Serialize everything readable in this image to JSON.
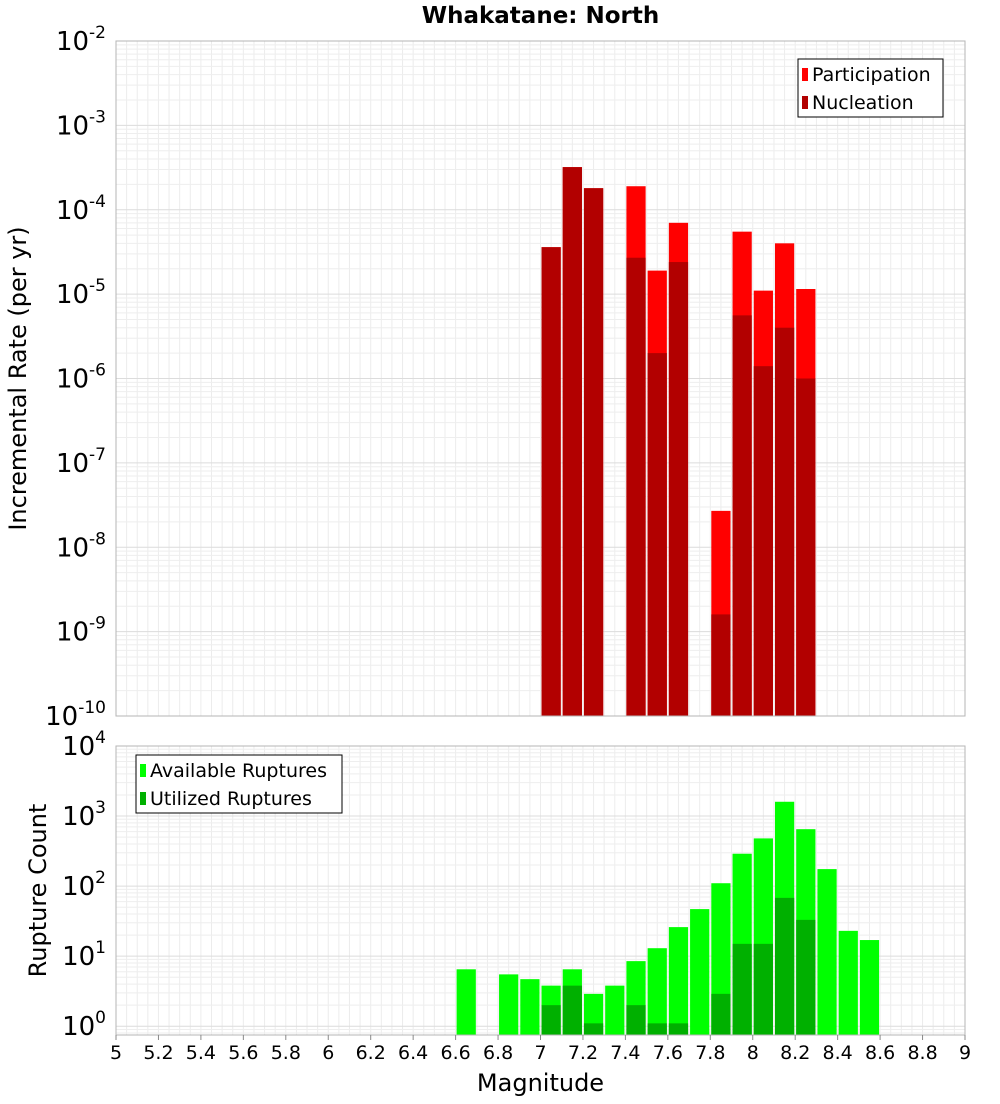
{
  "chart_data": [
    {
      "type": "bar",
      "title": "Whakatane: North",
      "ylabel": "Incremental Rate (per yr)",
      "xlabel": "",
      "y_scale": "log",
      "ylim": [
        1e-10,
        0.01
      ],
      "xlim": [
        5,
        9
      ],
      "bar_width": 0.1,
      "grid": true,
      "legend_position": "top-right",
      "y_tick_exponents": [
        "-10",
        "-9",
        "-8",
        "-7",
        "-6",
        "-5",
        "-4",
        "-3",
        "-2"
      ],
      "y_tick_base": "10",
      "series": [
        {
          "name": "Participation",
          "color": "#ff0000",
          "x": [
            7.05,
            7.15,
            7.25,
            7.45,
            7.55,
            7.65,
            7.85,
            7.95,
            8.05,
            8.15,
            8.25
          ],
          "values": [
            3.6e-05,
            0.00032,
            0.00018,
            0.00019,
            1.9e-05,
            7e-05,
            2.7e-08,
            5.5e-05,
            1.1e-05,
            4e-05,
            1.15e-05
          ]
        },
        {
          "name": "Nucleation",
          "color": "#b20000",
          "x": [
            7.05,
            7.15,
            7.25,
            7.45,
            7.55,
            7.65,
            7.85,
            7.95,
            8.05,
            8.15,
            8.25
          ],
          "values": [
            3.6e-05,
            0.00032,
            0.00018,
            2.7e-05,
            2e-06,
            2.4e-05,
            1.6e-09,
            5.6e-06,
            1.4e-06,
            4e-06,
            1e-06
          ]
        }
      ]
    },
    {
      "type": "bar",
      "title": "",
      "ylabel": "Rupture Count",
      "xlabel": "Magnitude",
      "y_scale": "log",
      "ylim": [
        0.75,
        10000
      ],
      "xlim": [
        5,
        9
      ],
      "bar_width": 0.1,
      "grid": true,
      "legend_position": "top-left",
      "y_tick_exponents": [
        "0",
        "1",
        "2",
        "3",
        "4"
      ],
      "y_tick_base": "10",
      "x_ticks": [
        "5",
        "5.2",
        "5.4",
        "5.6",
        "5.8",
        "6",
        "6.2",
        "6.4",
        "6.6",
        "6.8",
        "7",
        "7.2",
        "7.4",
        "7.6",
        "7.8",
        "8",
        "8.2",
        "8.4",
        "8.6",
        "8.8",
        "9"
      ],
      "series": [
        {
          "name": "Available Ruptures",
          "color": "#00ff00",
          "x": [
            6.65,
            6.85,
            6.95,
            7.05,
            7.15,
            7.25,
            7.35,
            7.45,
            7.55,
            7.65,
            7.75,
            7.85,
            7.95,
            8.05,
            8.15,
            8.25,
            8.35,
            8.45,
            8.55
          ],
          "values": [
            6.5,
            5.5,
            4.7,
            3.8,
            6.5,
            2.9,
            3.8,
            8.5,
            13,
            26,
            47,
            110,
            290,
            480,
            1600,
            650,
            175,
            23,
            17
          ]
        },
        {
          "name": "Utilized Ruptures",
          "color": "#00b000",
          "x": [
            7.05,
            7.15,
            7.25,
            7.45,
            7.55,
            7.65,
            7.85,
            7.95,
            8.05,
            8.15,
            8.25
          ],
          "values": [
            2.0,
            3.8,
            1.1,
            2.0,
            1.1,
            1.1,
            2.9,
            15,
            15,
            68,
            33
          ]
        }
      ]
    }
  ]
}
